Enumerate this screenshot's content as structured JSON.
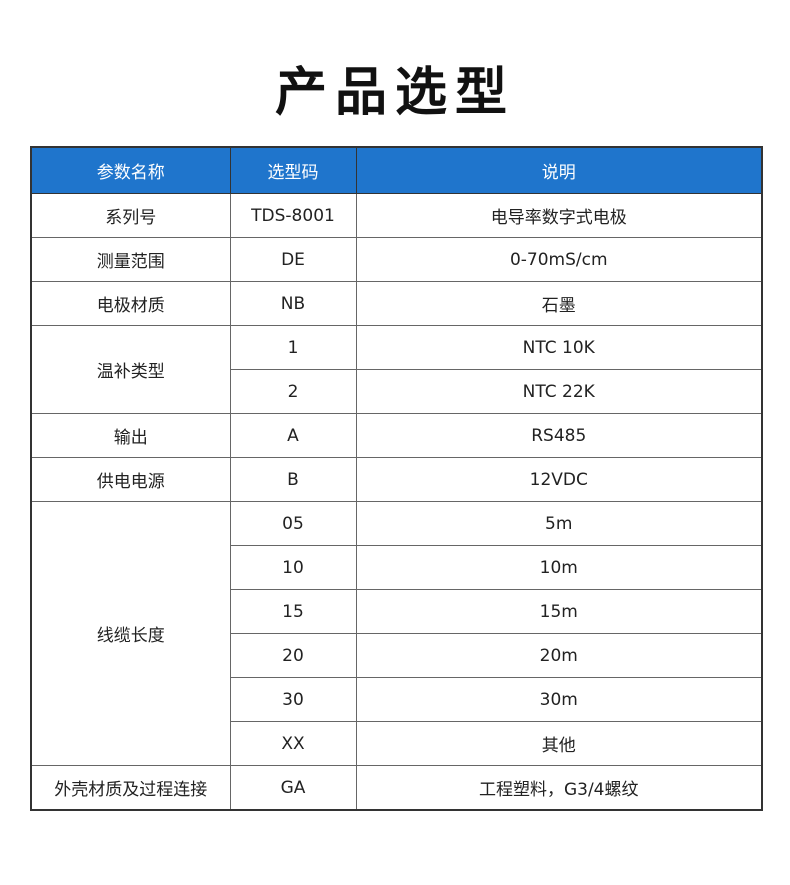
{
  "title": "产品选型",
  "headers": [
    "参数名称",
    "选型码",
    "说明"
  ],
  "rows": [
    {
      "param": "系列号",
      "code": "TDS-8001",
      "desc": "电导率数字式电极"
    },
    {
      "param": "测量范围",
      "code": "DE",
      "desc": "0-70mS/cm"
    },
    {
      "param": "电极材质",
      "code": "NB",
      "desc": "石墨"
    },
    {
      "param": "温补类型",
      "options": [
        {
          "code": "1",
          "desc": "NTC 10K"
        },
        {
          "code": "2",
          "desc": "NTC 22K"
        }
      ]
    },
    {
      "param": "输出",
      "code": "A",
      "desc": "RS485"
    },
    {
      "param": "供电电源",
      "code": "B",
      "desc": "12VDC"
    },
    {
      "param": "线缆长度",
      "options": [
        {
          "code": "05",
          "desc": "5m"
        },
        {
          "code": "10",
          "desc": "10m"
        },
        {
          "code": "15",
          "desc": "15m"
        },
        {
          "code": "20",
          "desc": "20m"
        },
        {
          "code": "30",
          "desc": "30m"
        },
        {
          "code": "XX",
          "desc": "其他"
        }
      ]
    },
    {
      "param": "外壳材质及过程连接",
      "code": "GA",
      "desc": "工程塑料，G3/4螺纹"
    }
  ],
  "colors": {
    "header_bg": "#1f75cc"
  }
}
